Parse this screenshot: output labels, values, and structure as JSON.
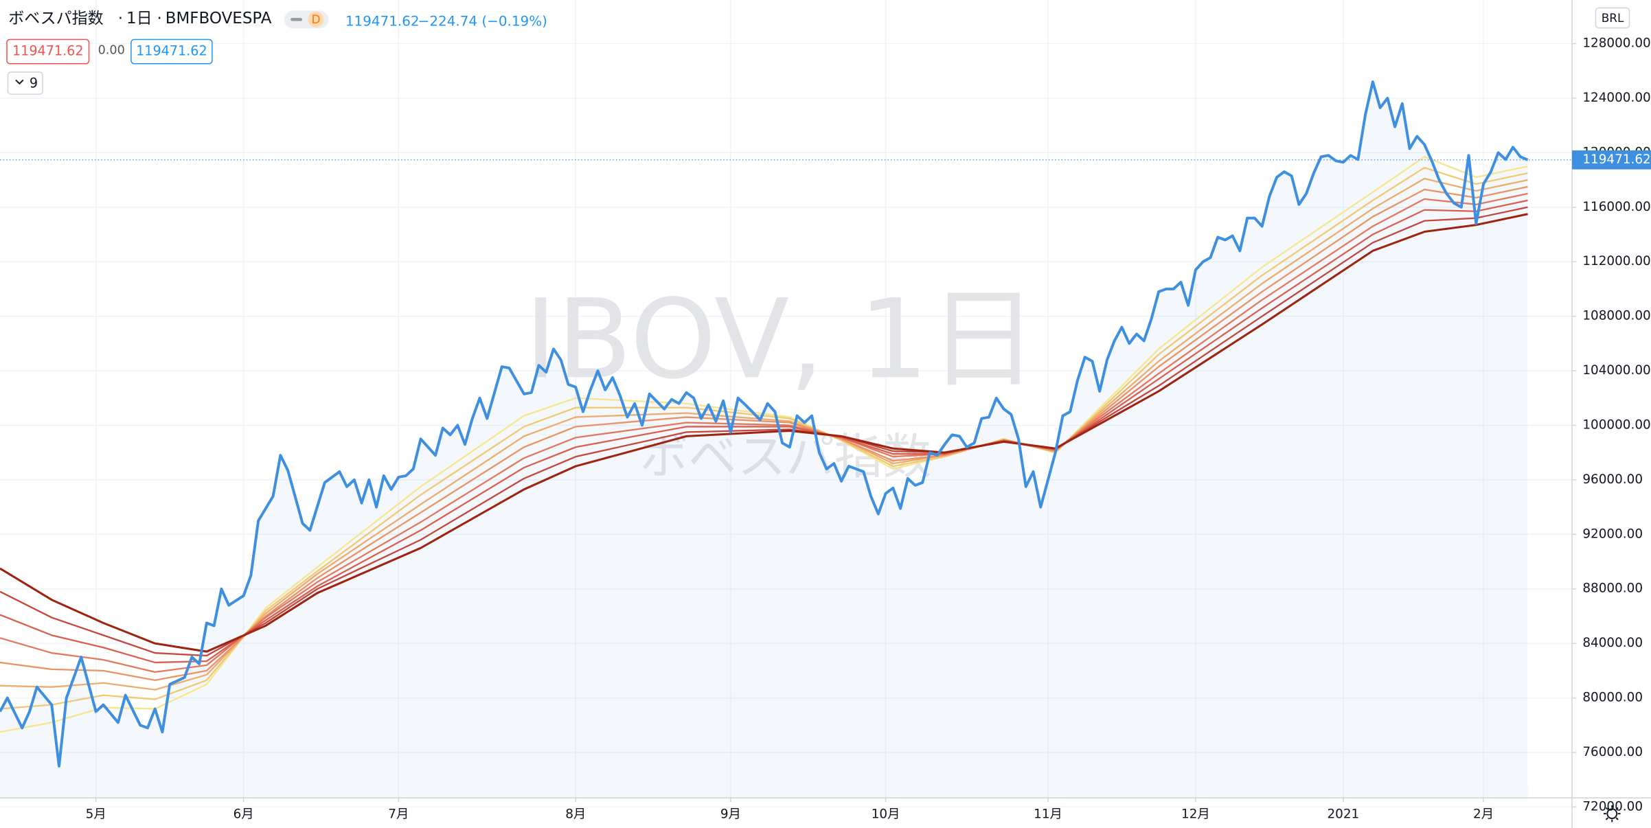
{
  "header": {
    "title": "ボベスパ指数",
    "interval": "1日",
    "exchange": "BMFBOVESPA",
    "badge": "D",
    "last": 119471.62,
    "change": "−224.74 (−0.19%)"
  },
  "indicator": {
    "value1": 119471.62,
    "value2": {
      "value": 0,
      "label": "0.00"
    },
    "value3": 119471.62,
    "length": 9
  },
  "currency": "BRL",
  "watermark": {
    "symbol": "IBOV, 1日",
    "name": "ボベスパ指数"
  },
  "chart_data": {
    "type": "line",
    "last_price": 119471.62,
    "grid": true,
    "xlim": [
      0,
      213
    ],
    "ylim": [
      70460,
      131200
    ],
    "xticks": [
      {
        "value": 13,
        "label": "5月"
      },
      {
        "value": 33,
        "label": "6月"
      },
      {
        "value": 54,
        "label": "7月"
      },
      {
        "value": 78,
        "label": "8月"
      },
      {
        "value": 99,
        "label": "9月"
      },
      {
        "value": 120,
        "label": "10月"
      },
      {
        "value": 142,
        "label": "11月"
      },
      {
        "value": 162,
        "label": "12月"
      },
      {
        "value": 182,
        "label": "2021"
      },
      {
        "value": 201,
        "label": "2月"
      }
    ],
    "yticks": [
      {
        "value": 72000,
        "label": "72000.00"
      },
      {
        "value": 76000,
        "label": "76000.00"
      },
      {
        "value": 80000,
        "label": "80000.00"
      },
      {
        "value": 84000,
        "label": "84000.00"
      },
      {
        "value": 88000,
        "label": "88000.00"
      },
      {
        "value": 92000,
        "label": "92000.00"
      },
      {
        "value": 96000,
        "label": "96000.00"
      },
      {
        "value": 100000,
        "label": "100000.00"
      },
      {
        "value": 104000,
        "label": "104000.00"
      },
      {
        "value": 108000,
        "label": "108000.00"
      },
      {
        "value": 112000,
        "label": "112000.00"
      },
      {
        "value": 116000,
        "label": "116000.00"
      },
      {
        "value": 120000,
        "label": "120000.00"
      },
      {
        "value": 124000,
        "label": "124000.00"
      },
      {
        "value": 128000,
        "label": "128000.00"
      }
    ],
    "series": [
      {
        "color": "#f6e58d",
        "x": [
          0,
          7,
          14,
          21,
          28,
          36,
          43,
          57,
          71,
          78,
          93,
          107,
          114,
          121,
          128,
          136,
          143,
          157,
          171,
          186,
          193,
          200,
          207
        ],
        "values": [
          77500,
          78200,
          79300,
          79200,
          81000,
          86600,
          89600,
          95500,
          100700,
          102000,
          101600,
          100600,
          98900,
          96800,
          97700,
          99000,
          98000,
          105600,
          111600,
          117100,
          119700,
          118200,
          119000
        ]
      },
      {
        "color": "#f3c872",
        "x": [
          0,
          7,
          14,
          21,
          28,
          36,
          43,
          57,
          71,
          78,
          93,
          107,
          114,
          121,
          128,
          136,
          143,
          157,
          171,
          186,
          193,
          200,
          207
        ],
        "values": [
          79200,
          79500,
          80200,
          79900,
          81300,
          86400,
          89300,
          94900,
          99900,
          101300,
          101300,
          100500,
          98900,
          97000,
          97700,
          99000,
          98000,
          105200,
          111000,
          116500,
          118900,
          117700,
          118500
        ]
      },
      {
        "color": "#eeac6b",
        "x": [
          0,
          7,
          14,
          21,
          28,
          36,
          43,
          57,
          71,
          78,
          93,
          107,
          114,
          121,
          128,
          136,
          143,
          157,
          171,
          186,
          193,
          200,
          207
        ],
        "values": [
          80900,
          80800,
          81100,
          80600,
          81700,
          86200,
          89100,
          94200,
          99200,
          100600,
          100900,
          100300,
          99000,
          97200,
          97800,
          98900,
          98100,
          104700,
          110400,
          115900,
          118100,
          117200,
          118000
        ]
      },
      {
        "color": "#ea9364",
        "x": [
          0,
          7,
          14,
          21,
          28,
          36,
          43,
          57,
          71,
          78,
          93,
          107,
          114,
          121,
          128,
          136,
          143,
          157,
          171,
          186,
          193,
          200,
          207
        ],
        "values": [
          82600,
          82100,
          82000,
          81300,
          82000,
          86000,
          88800,
          93600,
          98400,
          99900,
          100600,
          100200,
          99000,
          97400,
          97800,
          98900,
          98100,
          104300,
          109800,
          115300,
          117300,
          116700,
          117500
        ]
      },
      {
        "color": "#e4785c",
        "x": [
          0,
          7,
          14,
          21,
          28,
          36,
          43,
          57,
          71,
          78,
          93,
          107,
          114,
          121,
          128,
          136,
          143,
          157,
          171,
          186,
          193,
          200,
          207
        ],
        "values": [
          84400,
          83300,
          82800,
          81900,
          82400,
          85900,
          88500,
          92900,
          97600,
          99100,
          100200,
          100000,
          99100,
          97700,
          97900,
          98900,
          98200,
          103800,
          109200,
          114600,
          116600,
          116200,
          117000
        ]
      },
      {
        "color": "#d9604d",
        "x": [
          0,
          7,
          14,
          21,
          28,
          36,
          43,
          57,
          71,
          78,
          93,
          107,
          114,
          121,
          128,
          136,
          143,
          157,
          171,
          186,
          193,
          200,
          207
        ],
        "values": [
          86100,
          84600,
          83700,
          82600,
          82700,
          85700,
          88200,
          92300,
          96900,
          98400,
          99900,
          99900,
          99100,
          97900,
          97900,
          98900,
          98200,
          103400,
          108600,
          114000,
          115800,
          115700,
          116500
        ]
      },
      {
        "color": "#c5463a",
        "x": [
          0,
          7,
          14,
          21,
          28,
          36,
          43,
          57,
          71,
          78,
          93,
          107,
          114,
          121,
          128,
          136,
          143,
          157,
          171,
          186,
          193,
          200,
          207
        ],
        "values": [
          87800,
          85900,
          84600,
          83300,
          83100,
          85500,
          88000,
          91600,
          96100,
          97700,
          99500,
          99700,
          99200,
          98100,
          98000,
          98800,
          98300,
          102900,
          108000,
          113400,
          115000,
          115200,
          116000
        ]
      },
      {
        "color": "#9e2410",
        "x": [
          0,
          7,
          14,
          21,
          28,
          36,
          43,
          57,
          71,
          78,
          93,
          107,
          114,
          121,
          128,
          136,
          143,
          157,
          171,
          186,
          193,
          200,
          207
        ],
        "values": [
          89500,
          87200,
          85500,
          84000,
          83400,
          85300,
          87700,
          91000,
          95300,
          97000,
          99200,
          99600,
          99200,
          98300,
          98000,
          98800,
          98300,
          102500,
          107400,
          112800,
          114200,
          114700,
          115500
        ]
      },
      {
        "color": "#3f8fe0",
        "area": true,
        "x": [
          0,
          1,
          3,
          4,
          5,
          7,
          8,
          9,
          11,
          13,
          14,
          16,
          17,
          19,
          20,
          21,
          22,
          23,
          25,
          26,
          27,
          28,
          29,
          30,
          31,
          33,
          34,
          35,
          37,
          38,
          39,
          41,
          42,
          44,
          46,
          47,
          48,
          49,
          50,
          51,
          52,
          53,
          54,
          55,
          56,
          57,
          59,
          60,
          61,
          62,
          63,
          64,
          65,
          66,
          68,
          69,
          71,
          72,
          73,
          74,
          75,
          76,
          77,
          78,
          79,
          80,
          81,
          82,
          83,
          84,
          85,
          86,
          87,
          88,
          90,
          91,
          92,
          93,
          94,
          95,
          96,
          97,
          98,
          99,
          100,
          101,
          103,
          104,
          105,
          106,
          107,
          108,
          109,
          110,
          111,
          112,
          113,
          114,
          115,
          117,
          118,
          119,
          120,
          121,
          122,
          123,
          124,
          125,
          126,
          127,
          128,
          129,
          130,
          131,
          132,
          133,
          134,
          135,
          136,
          137,
          138,
          139,
          140,
          141,
          142,
          143,
          144,
          145,
          146,
          147,
          148,
          149,
          150,
          151,
          152,
          153,
          154,
          155,
          156,
          157,
          158,
          159,
          160,
          161,
          162,
          163,
          164,
          165,
          166,
          167,
          168,
          169,
          170,
          171,
          172,
          173,
          174,
          175,
          176,
          177,
          178,
          179,
          180,
          181,
          182,
          183,
          184,
          185,
          186,
          187,
          188,
          189,
          190,
          191,
          192,
          193,
          194,
          195,
          196,
          197,
          198,
          199,
          200,
          201,
          202,
          203,
          204,
          205,
          206,
          207
        ],
        "values": [
          79000,
          80000,
          77800,
          79000,
          80800,
          79500,
          75000,
          80000,
          83000,
          79000,
          79500,
          78200,
          80200,
          78000,
          77800,
          79200,
          77500,
          81000,
          81500,
          83000,
          82500,
          85500,
          85300,
          88000,
          86800,
          87500,
          89000,
          93000,
          94800,
          97800,
          96700,
          92800,
          92300,
          95800,
          96600,
          95500,
          96000,
          94300,
          96000,
          94000,
          96300,
          95300,
          96200,
          96300,
          96800,
          99000,
          97800,
          99800,
          99300,
          100000,
          98600,
          100500,
          102000,
          100500,
          104300,
          104200,
          102300,
          102400,
          104400,
          103900,
          105600,
          104800,
          103000,
          102800,
          101000,
          102600,
          104000,
          102600,
          103500,
          102200,
          100600,
          101600,
          100000,
          102300,
          101200,
          101900,
          101600,
          102400,
          102000,
          100500,
          101500,
          100300,
          101800,
          99500,
          102000,
          101500,
          100400,
          101600,
          101000,
          98700,
          98400,
          100700,
          100200,
          100700,
          98000,
          96800,
          97200,
          95900,
          97000,
          96600,
          94800,
          93500,
          95000,
          95400,
          93900,
          96100,
          95600,
          95800,
          98000,
          97800,
          98600,
          99300,
          99200,
          98400,
          98700,
          100500,
          100600,
          102000,
          101200,
          100800,
          99000,
          95500,
          96600,
          94000,
          96000,
          98000,
          100700,
          101000,
          103300,
          105000,
          104700,
          102500,
          104800,
          106200,
          107200,
          106000,
          106700,
          106200,
          107800,
          109800,
          110000,
          110000,
          110500,
          108800,
          111400,
          112000,
          112300,
          113800,
          113600,
          113900,
          112800,
          115200,
          115200,
          114600,
          116800,
          118200,
          118600,
          118300,
          116200,
          117000,
          118500,
          119700,
          119800,
          119400,
          119300,
          119800,
          119500,
          122800,
          125200,
          123300,
          124000,
          121900,
          123600,
          120300,
          121200,
          120600,
          119400,
          118000,
          117000,
          116300,
          116000,
          119800,
          114800,
          117700,
          118600,
          120000,
          119500,
          120400,
          119700,
          119471.62
        ]
      }
    ]
  }
}
